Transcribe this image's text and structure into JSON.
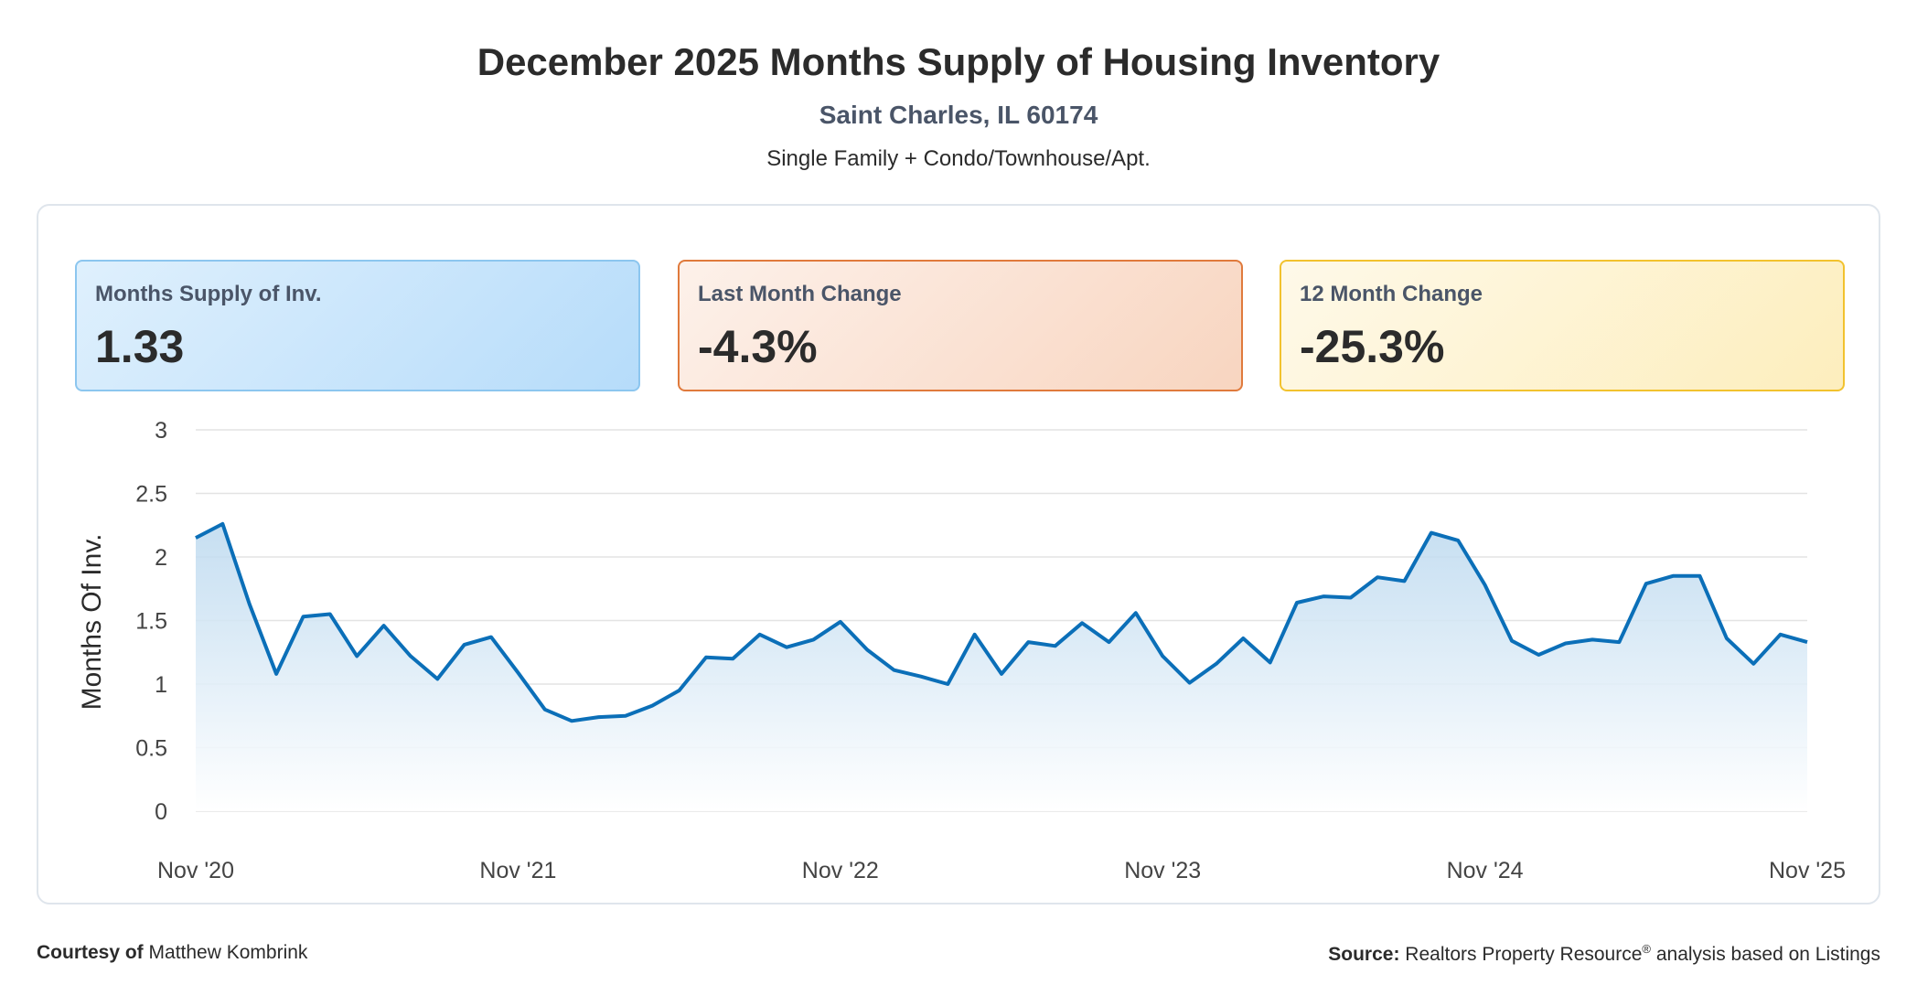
{
  "header": {
    "title": "December 2025 Months Supply of Housing Inventory",
    "location": "Saint Charles, IL 60174",
    "property_types": "Single Family + Condo/Townhouse/Apt."
  },
  "cards": [
    {
      "label": "Months Supply of Inv.",
      "value": "1.33"
    },
    {
      "label": "Last Month Change",
      "value": "-4.3%"
    },
    {
      "label": "12 Month Change",
      "value": "-25.3%"
    }
  ],
  "footer": {
    "courtesy_label": "Courtesy of",
    "courtesy_name": "Matthew Kombrink",
    "source_label": "Source:",
    "source_text_a": "Realtors Property Resource",
    "source_reg": "®",
    "source_text_b": " analysis based on Listings"
  },
  "colors": {
    "line": "#0b6fb8",
    "area_top": "#bcd9ef",
    "area_bottom": "#ffffff",
    "grid": "#e3e3e3"
  },
  "chart_data": {
    "type": "area",
    "title": "",
    "xlabel": "",
    "ylabel": "Months Of Inv.",
    "ylim": [
      0,
      3
    ],
    "yticks": [
      "0",
      "0.5",
      "1",
      "1.5",
      "2",
      "2.5",
      "3"
    ],
    "x_tick_labels": [
      "Nov '20",
      "Nov '21",
      "Nov '22",
      "Nov '23",
      "Nov '24",
      "Nov '25"
    ],
    "x_start": "Nov 2020",
    "x_end": "Nov 2025",
    "grid": true,
    "series": [
      {
        "values": [
          2.15,
          2.26,
          1.63,
          1.08,
          1.53,
          1.55,
          1.22,
          1.46,
          1.22,
          1.04,
          1.31,
          1.37,
          1.09,
          0.8,
          0.71,
          0.74,
          0.75,
          0.83,
          0.95,
          1.21,
          1.2,
          1.39,
          1.29,
          1.35,
          1.49,
          1.27,
          1.11,
          1.06,
          1.0,
          1.39,
          1.08,
          1.33,
          1.3,
          1.48,
          1.33,
          1.56,
          1.22,
          1.01,
          1.16,
          1.36,
          1.17,
          1.64,
          1.69,
          1.68,
          1.84,
          1.81,
          2.19,
          2.13,
          1.78,
          1.34,
          1.23,
          1.32,
          1.35,
          1.33,
          1.79,
          1.85,
          1.85,
          1.36,
          1.16,
          1.39,
          1.33
        ]
      }
    ]
  }
}
